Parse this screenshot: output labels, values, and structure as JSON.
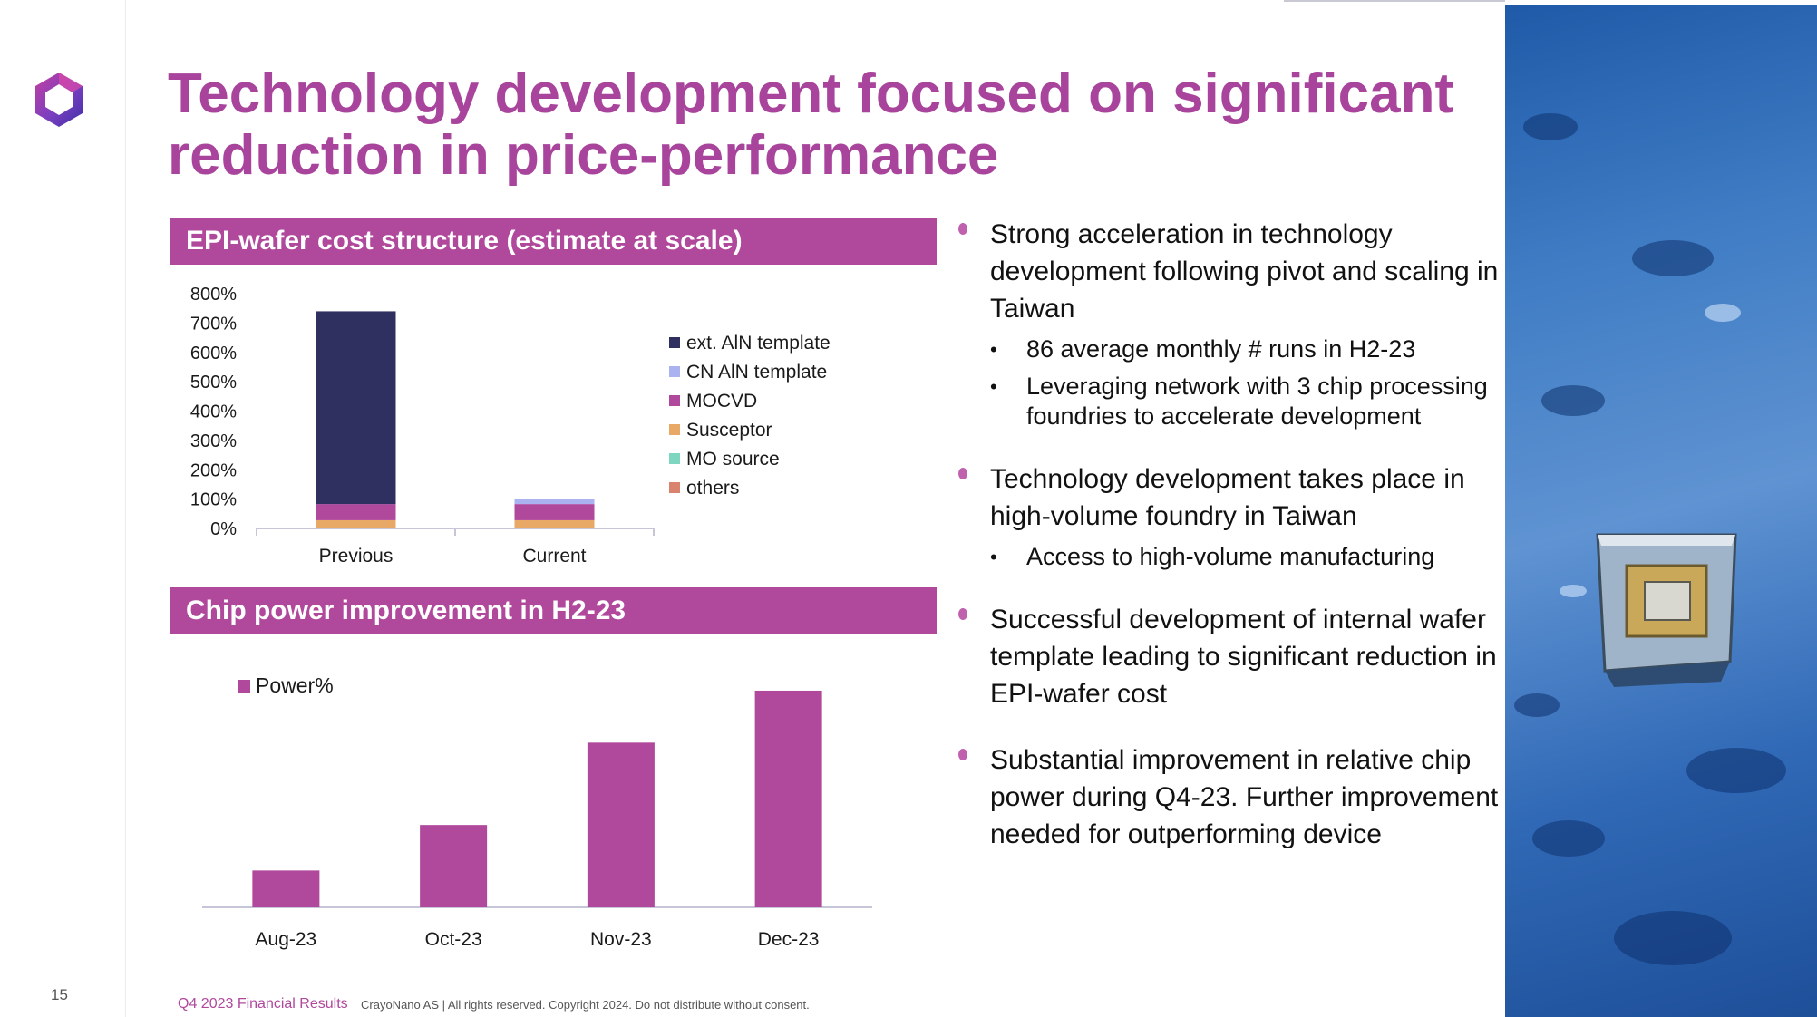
{
  "page": {
    "title": "Technology development focused on significant reduction in price-performance",
    "page_number": "15",
    "footer_brand": "Q4 2023 Financial Results",
    "footer_copyright": "CrayoNano AS | All rights reserved. Copyright 2024. Do not distribute without consent."
  },
  "colors": {
    "accent": "#b0489c",
    "title": "#a8449c"
  },
  "sections": {
    "cost_title": "EPI-wafer cost structure (estimate at scale)",
    "power_title": "Chip power improvement in H2-23"
  },
  "chart_data": [
    {
      "type": "bar",
      "stacked": true,
      "title": "EPI-wafer cost structure (estimate at scale)",
      "categories": [
        "Previous",
        "Current"
      ],
      "ylim": [
        0,
        800
      ],
      "yticks": [
        0,
        100,
        200,
        300,
        400,
        500,
        600,
        700,
        800
      ],
      "ytick_labels": [
        "0%",
        "100%",
        "200%",
        "300%",
        "400%",
        "500%",
        "600%",
        "700%",
        "800%"
      ],
      "legend_position": "right",
      "grid": false,
      "series": [
        {
          "name": "others",
          "color": "#d9826e",
          "values": [
            0,
            0
          ]
        },
        {
          "name": "MO source",
          "color": "#7fd6c0",
          "values": [
            0,
            0
          ]
        },
        {
          "name": "Susceptor",
          "color": "#e8a866",
          "values": [
            28,
            28
          ]
        },
        {
          "name": "MOCVD",
          "color": "#b0489c",
          "values": [
            55,
            55
          ]
        },
        {
          "name": "CN AlN template",
          "color": "#aab2f0",
          "values": [
            0,
            17
          ]
        },
        {
          "name": "ext. AlN template",
          "color": "#2f3060",
          "values": [
            657,
            0
          ]
        }
      ],
      "legend_order": [
        "ext. AlN template",
        "CN AlN template",
        "MOCVD",
        "Susceptor",
        "MO source",
        "others"
      ]
    },
    {
      "type": "bar",
      "title": "Chip power improvement in H2-23",
      "categories": [
        "Aug-23",
        "Oct-23",
        "Nov-23",
        "Dec-23"
      ],
      "legend_position": "top-left",
      "grid": false,
      "series": [
        {
          "name": "Power%",
          "color": "#b0489c",
          "values": [
            17,
            38,
            76,
            100
          ]
        }
      ],
      "ylim": [
        0,
        105
      ]
    }
  ],
  "bullets": [
    {
      "text": "Strong acceleration in technology development following pivot and scaling in Taiwan",
      "sub": [
        "86 average monthly # runs in H2-23",
        "Leveraging network with 3 chip processing foundries to accelerate development"
      ]
    },
    {
      "text": "Technology development takes place in high-volume foundry in Taiwan",
      "sub": [
        "Access to high-volume manufacturing"
      ]
    },
    {
      "text": "Successful development of internal wafer template leading to significant reduction in EPI-wafer cost",
      "sub": []
    },
    {
      "text": "Substantial improvement in relative chip power during Q4-23. Further improvement needed for outperforming device",
      "sub": []
    }
  ],
  "image": {
    "subject": "packaged-chip-on-water-droplets"
  }
}
